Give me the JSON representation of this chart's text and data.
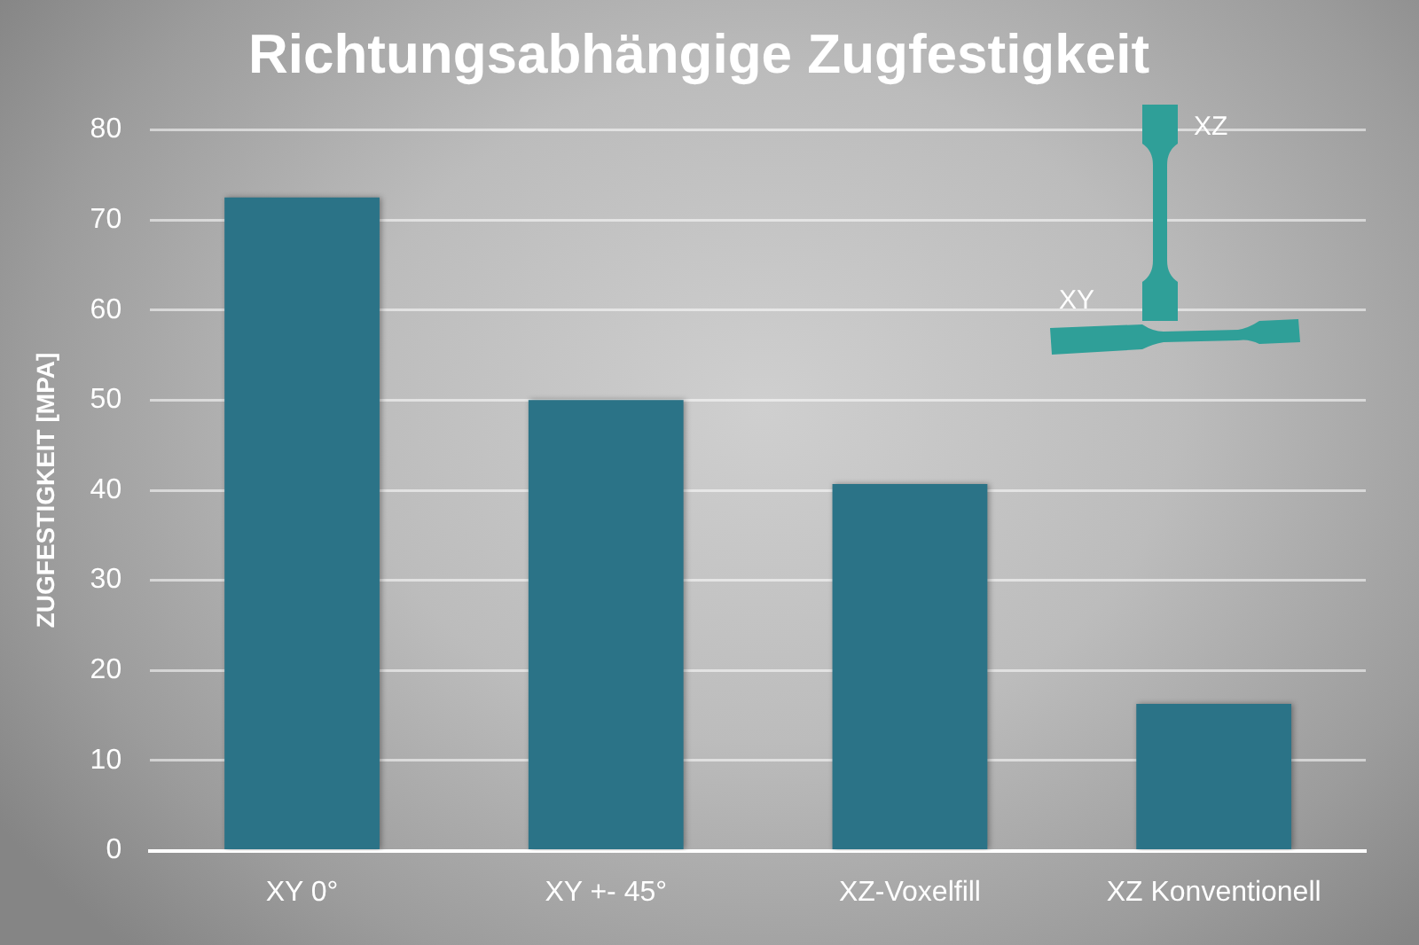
{
  "chart_data": {
    "type": "bar",
    "title": "Richtungsabhängige Zugfestigkeit",
    "ylabel": "ZUGFESTIGKEIT [MPA]",
    "categories": [
      "XY 0°",
      "XY +- 45°",
      "XZ-Voxelfill",
      "XZ Konventionell"
    ],
    "values": [
      72.5,
      50,
      40.7,
      16.3
    ],
    "color": "#2b7387",
    "ylim": [
      0,
      80
    ],
    "yticks": [
      0,
      10,
      20,
      30,
      40,
      50,
      60,
      70,
      80
    ],
    "grid": "y",
    "annotations": [
      "XZ",
      "XY"
    ]
  }
}
